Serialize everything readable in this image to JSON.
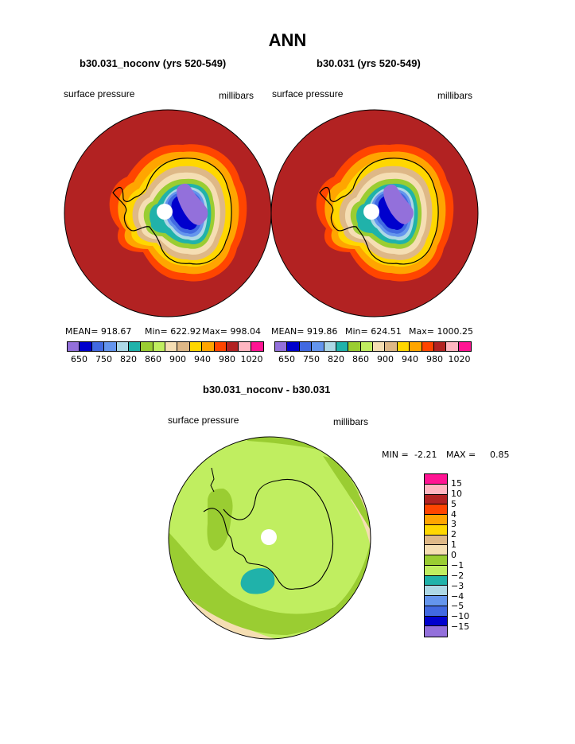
{
  "title": "ANN",
  "panels": {
    "left": {
      "subtitle": "b30.031_noconv (yrs 520-549)",
      "variable": "surface pressure",
      "units": "millibars",
      "mean": "MEAN= 918.67",
      "min": "Min= 622.92",
      "max": "Max= 998.04"
    },
    "right": {
      "subtitle": "b30.031 (yrs 520-549)",
      "variable": "surface pressure",
      "units": "millibars",
      "mean": "MEAN= 919.86",
      "min": "Min= 624.51",
      "max": "Max= 1000.25"
    },
    "diff": {
      "subtitle": "b30.031_noconv - b30.031",
      "variable": "surface pressure",
      "units": "millibars",
      "min": "MIN =",
      "min_value": "-2.21",
      "max": "MAX =",
      "max_value": "0.85"
    }
  },
  "colorbar_top": {
    "colors": [
      "#9370db",
      "#0000cd",
      "#4169e1",
      "#6495ed",
      "#add8e6",
      "#20b2aa",
      "#9acd32",
      "#c0ee60",
      "#f5deb3",
      "#deb887",
      "#ffd700",
      "#ffa500",
      "#ff4500",
      "#b22222",
      "#ffb6c1",
      "#ff1493"
    ],
    "labels": [
      "650",
      "750",
      "820",
      "860",
      "900",
      "940",
      "980",
      "1020"
    ]
  },
  "colorbar_diff": {
    "colors": [
      "#ff1493",
      "#ffb6c1",
      "#b22222",
      "#ff4500",
      "#ffa500",
      "#ffd700",
      "#deb887",
      "#f5deb3",
      "#9acd32",
      "#c0ee60",
      "#20b2aa",
      "#add8e6",
      "#6495ed",
      "#4169e1",
      "#0000cd",
      "#9370db"
    ],
    "labels": [
      "15",
      "10",
      "5",
      "4",
      "3",
      "2",
      "1",
      "0",
      "−1",
      "−2",
      "−3",
      "−4",
      "−5",
      "−10",
      "−15"
    ]
  }
}
